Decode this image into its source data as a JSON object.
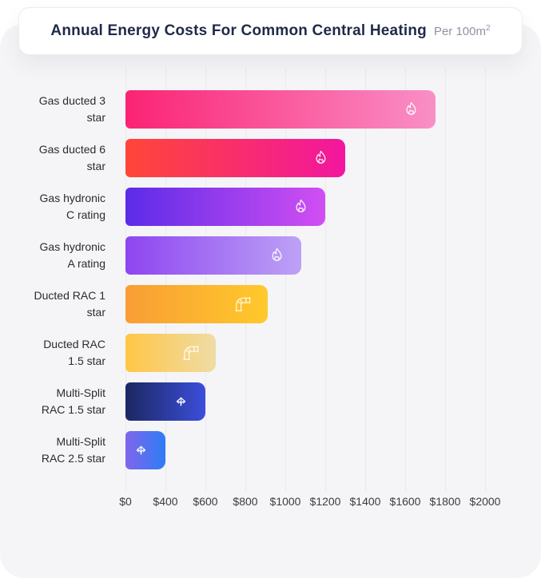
{
  "header": {
    "title": "Annual Energy Costs For Common Central Heating",
    "subtitle": "Per 100m",
    "subtitle_superscript": "2"
  },
  "colors": {
    "page_bg": "#FFFFFF",
    "panel_bg": "#F5F5F7",
    "header_card_bg": "#FFFFFF",
    "title_text": "#1F2A48",
    "subtitle_text": "#8D93A1",
    "grid_line": "#EAEAEE",
    "tick_label": "#3B3B42",
    "category_label": "#2B2B31",
    "bar_icon": "#FFFFFF"
  },
  "chart_data": {
    "type": "bar",
    "orientation": "horizontal",
    "title": "Annual Energy Costs For Common Central Heating",
    "subtitle": "Per 100m²",
    "grid": true,
    "xlim": [
      0,
      2000
    ],
    "x_tick_labels": [
      "$0",
      "$400",
      "$600",
      "$800",
      "$1000",
      "$1200",
      "$1400",
      "$1600",
      "$1800",
      "$2000"
    ],
    "scale_note": "ticks evenly spaced on axis; first interval spans $0-$400, each later interval spans $200",
    "categories": [
      "Gas ducted 3 star",
      "Gas ducted 6 star",
      "Gas hydronic C rating",
      "Gas hydronic A rating",
      "Ducted RAC 1 star",
      "Ducted RAC 1.5 star",
      "Multi-Split RAC 1.5 star",
      "Multi-Split RAC 2.5 star"
    ],
    "values": [
      1750,
      1300,
      1200,
      1080,
      910,
      650,
      600,
      400
    ],
    "bars": [
      {
        "label_lines": [
          "Gas ducted 3",
          "star"
        ],
        "value": 1750,
        "icon": "flame-icon",
        "gradient": [
          "#FB2374",
          "#F98FC6"
        ]
      },
      {
        "label_lines": [
          "Gas ducted 6",
          "star"
        ],
        "value": 1300,
        "icon": "flame-icon",
        "gradient": [
          "#FF4638",
          "#F2169F"
        ]
      },
      {
        "label_lines": [
          "Gas hydronic",
          "C rating"
        ],
        "value": 1200,
        "icon": "flame-icon",
        "gradient": [
          "#5C2BE8",
          "#D14FF2"
        ]
      },
      {
        "label_lines": [
          "Gas hydronic",
          "A rating"
        ],
        "value": 1080,
        "icon": "flame-icon",
        "gradient": [
          "#8E45F0",
          "#BCA2F6"
        ]
      },
      {
        "label_lines": [
          "Ducted RAC 1",
          "star"
        ],
        "value": 910,
        "icon": "duct-icon",
        "gradient": [
          "#F89D35",
          "#FFC92B"
        ]
      },
      {
        "label_lines": [
          "Ducted RAC",
          "1.5 star"
        ],
        "value": 650,
        "icon": "duct-icon",
        "gradient": [
          "#FFC645",
          "#EFDCA6"
        ]
      },
      {
        "label_lines": [
          "Multi-Split",
          "RAC 1.5 star"
        ],
        "value": 600,
        "icon": "split-arrows-icon",
        "gradient": [
          "#1B2861",
          "#3C4EDC"
        ]
      },
      {
        "label_lines": [
          "Multi-Split",
          "RAC 2.5 star"
        ],
        "value": 400,
        "icon": "split-arrows-icon",
        "gradient": [
          "#8066EA",
          "#2E7CF6"
        ]
      }
    ]
  }
}
